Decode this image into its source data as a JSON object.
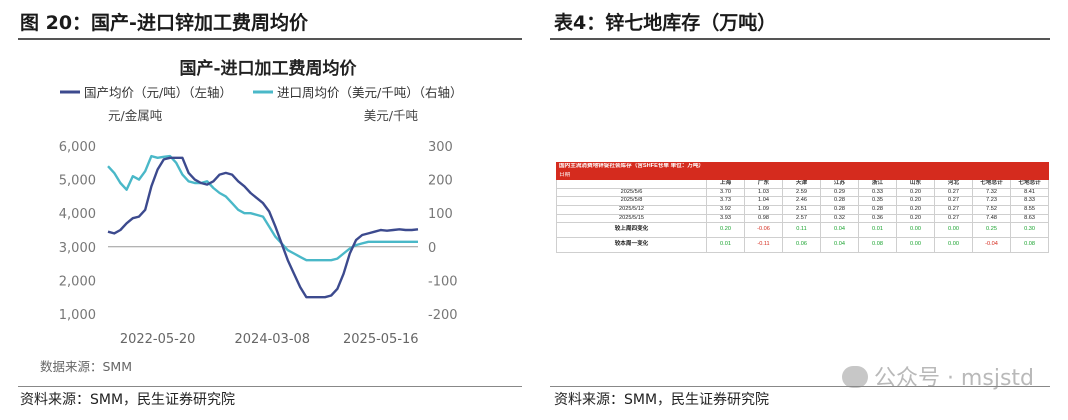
{
  "left_panel": {
    "figure_title": "图 20：国产-进口锌加工费周均价",
    "source": "资料来源：SMM，民生证券研究院"
  },
  "right_panel": {
    "figure_title": "表4：锌七地库存（万吨）",
    "source": "资料来源：SMM，民生证券研究院",
    "watermark": "公众号 · msjstd"
  },
  "colors": {
    "domestic": "#3c4a8e",
    "import": "#4ab8c8",
    "zero_line": "#9a9a9a",
    "table_header": "#d52b1e",
    "positive": "#1aa32f"
  },
  "chart_data": {
    "type": "line",
    "title": "国产-进口加工费周均价",
    "left_axis_unit": "元/金属吨",
    "right_axis_unit": "美元/千吨",
    "source_note": "数据来源：SMM",
    "x_ticks": [
      "2022-05-20",
      "2024-03-08",
      "2025-05-16"
    ],
    "left_ylim": [
      1000,
      6000
    ],
    "left_ticks": [
      "1,000",
      "2,000",
      "3,000",
      "4,000",
      "5,000",
      "6,000"
    ],
    "left_tick_values": [
      1000,
      2000,
      3000,
      4000,
      5000,
      6000
    ],
    "right_ylim": [
      -200,
      300
    ],
    "right_ticks": [
      "-200",
      "-100",
      "0",
      "100",
      "200",
      "300"
    ],
    "right_tick_values": [
      -200,
      -100,
      0,
      100,
      200,
      300
    ],
    "x_range": [
      0,
      100
    ],
    "x_tick_positions": [
      16,
      53,
      88
    ],
    "series": [
      {
        "name": "国产均价（元/吨）（左轴）",
        "axis": "left",
        "x": [
          0,
          2,
          4,
          6,
          8,
          10,
          12,
          14,
          16,
          18,
          20,
          22,
          24,
          26,
          28,
          30,
          32,
          34,
          36,
          38,
          40,
          42,
          44,
          46,
          48,
          50,
          52,
          54,
          56,
          58,
          60,
          62,
          64,
          66,
          68,
          70,
          72,
          74,
          76,
          78,
          80,
          82,
          84,
          86,
          88,
          90,
          92,
          94,
          96,
          98,
          100
        ],
        "y": [
          3450,
          3400,
          3500,
          3700,
          3850,
          3900,
          4100,
          4800,
          5300,
          5600,
          5650,
          5650,
          5650,
          5200,
          5000,
          4900,
          4850,
          4950,
          5150,
          5200,
          5150,
          4950,
          4800,
          4600,
          4450,
          4300,
          4050,
          3600,
          3100,
          2600,
          2200,
          1800,
          1500,
          1500,
          1500,
          1500,
          1550,
          1750,
          2200,
          2800,
          3200,
          3350,
          3400,
          3450,
          3500,
          3480,
          3500,
          3520,
          3500,
          3500,
          3520
        ]
      },
      {
        "name": "进口周均价（美元/千吨）（右轴）",
        "axis": "right",
        "x": [
          0,
          2,
          4,
          6,
          8,
          10,
          12,
          14,
          16,
          18,
          20,
          22,
          24,
          26,
          28,
          30,
          32,
          34,
          36,
          38,
          40,
          42,
          44,
          46,
          48,
          50,
          52,
          54,
          56,
          58,
          60,
          62,
          64,
          66,
          68,
          70,
          72,
          74,
          76,
          78,
          80,
          82,
          84,
          86,
          88,
          90,
          92,
          94,
          96,
          98,
          100
        ],
        "y": [
          240,
          220,
          190,
          170,
          210,
          200,
          225,
          270,
          265,
          268,
          270,
          250,
          215,
          195,
          190,
          190,
          195,
          175,
          160,
          150,
          130,
          110,
          100,
          100,
          95,
          90,
          60,
          30,
          10,
          -10,
          -20,
          -30,
          -40,
          -40,
          -40,
          -40,
          -40,
          -35,
          -20,
          -5,
          5,
          10,
          15,
          15,
          15,
          15,
          15,
          15,
          15,
          15,
          15
        ]
      }
    ]
  },
  "inventory_table": {
    "title": "国内主流消费地锌锭社会库存（含SHFE仓单 单位：万吨）",
    "date_label": "日期",
    "columns": [
      "上海",
      "广东",
      "天津",
      "江苏",
      "浙江",
      "山东",
      "河北",
      "七地总计",
      "七地总计"
    ],
    "rows": [
      {
        "label": "2025/5/6",
        "values": [
          "3.70",
          "1.03",
          "2.59",
          "0.29",
          "0.33",
          "0.20",
          "0.27",
          "7.32",
          "8.41"
        ]
      },
      {
        "label": "2025/5/8",
        "values": [
          "3.73",
          "1.04",
          "2.46",
          "0.28",
          "0.35",
          "0.20",
          "0.27",
          "7.23",
          "8.33"
        ]
      },
      {
        "label": "2025/5/12",
        "values": [
          "3.92",
          "1.09",
          "2.51",
          "0.28",
          "0.28",
          "0.20",
          "0.27",
          "7.52",
          "8.55"
        ]
      },
      {
        "label": "2025/5/15",
        "values": [
          "3.93",
          "0.98",
          "2.57",
          "0.32",
          "0.36",
          "0.20",
          "0.27",
          "7.48",
          "8.63"
        ]
      }
    ],
    "changes": [
      {
        "label": "较上周四变化",
        "values": [
          "0.20",
          "-0.06",
          "0.11",
          "0.04",
          "0.01",
          "0.00",
          "0.00",
          "0.25",
          "0.30"
        ]
      },
      {
        "label": "较本周一变化",
        "values": [
          "0.01",
          "-0.11",
          "0.06",
          "0.04",
          "0.08",
          "0.00",
          "0.00",
          "-0.04",
          "0.08"
        ]
      }
    ]
  }
}
